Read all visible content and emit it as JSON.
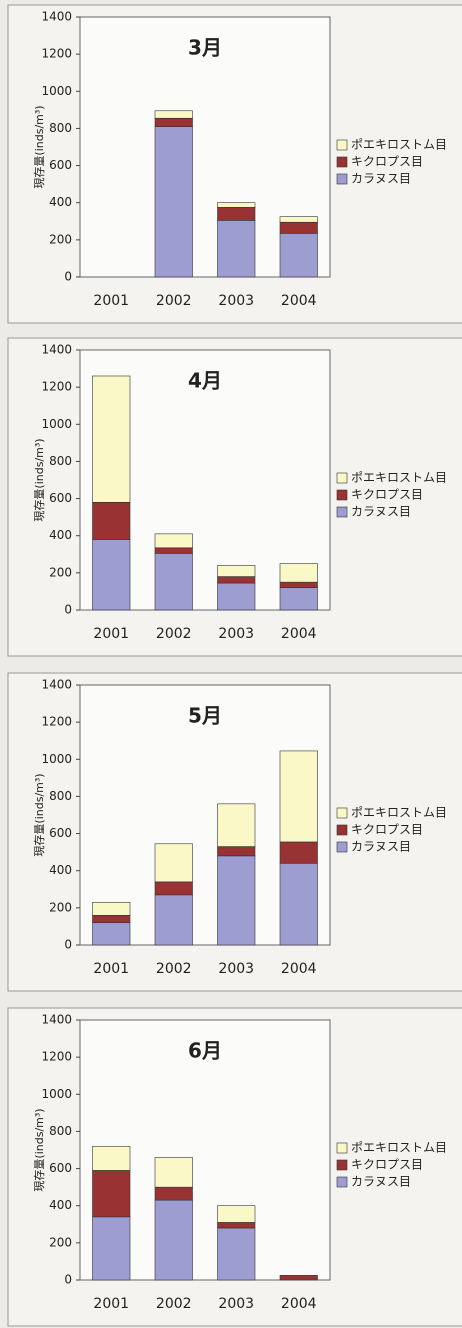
{
  "charts": [
    {
      "type": "bar",
      "stacked": true,
      "title": "3月",
      "y_label": "現存量(inds/m³)",
      "categories": [
        "2001",
        "2002",
        "2003",
        "2004"
      ],
      "series": [
        {
          "name": "カラヌス目",
          "color": "#9d9dd2",
          "values": [
            0,
            810,
            305,
            235
          ]
        },
        {
          "name": "キクロプス目",
          "color": "#993333",
          "values": [
            0,
            45,
            70,
            60
          ]
        },
        {
          "name": "ポエキロストム目",
          "color": "#fbf8c8",
          "values": [
            0,
            40,
            25,
            30
          ]
        }
      ],
      "ylim": [
        0,
        1400
      ],
      "yticks": [
        0,
        200,
        400,
        600,
        800,
        1000,
        1200,
        1400
      ]
    },
    {
      "type": "bar",
      "stacked": true,
      "title": "4月",
      "y_label": "現存量(inds/m³)",
      "categories": [
        "2001",
        "2002",
        "2003",
        "2004"
      ],
      "series": [
        {
          "name": "カラヌス目",
          "color": "#9d9dd2",
          "values": [
            380,
            305,
            145,
            120
          ]
        },
        {
          "name": "キクロプス目",
          "color": "#993333",
          "values": [
            200,
            30,
            35,
            30
          ]
        },
        {
          "name": "ポエキロストム目",
          "color": "#fbf8c8",
          "values": [
            680,
            75,
            60,
            100
          ]
        }
      ],
      "ylim": [
        0,
        1400
      ],
      "yticks": [
        0,
        200,
        400,
        600,
        800,
        1000,
        1200,
        1400
      ]
    },
    {
      "type": "bar",
      "stacked": true,
      "title": "5月",
      "y_label": "現存量(inds/m³)",
      "categories": [
        "2001",
        "2002",
        "2003",
        "2004"
      ],
      "series": [
        {
          "name": "カラヌス目",
          "color": "#9d9dd2",
          "values": [
            120,
            270,
            480,
            440
          ]
        },
        {
          "name": "キクロプス目",
          "color": "#993333",
          "values": [
            40,
            70,
            50,
            115
          ]
        },
        {
          "name": "ポエキロストム目",
          "color": "#fbf8c8",
          "values": [
            70,
            205,
            230,
            490
          ]
        }
      ],
      "ylim": [
        0,
        1400
      ],
      "yticks": [
        0,
        200,
        400,
        600,
        800,
        1000,
        1200,
        1400
      ]
    },
    {
      "type": "bar",
      "stacked": true,
      "title": "6月",
      "y_label": "現存量(inds/m³)",
      "categories": [
        "2001",
        "2002",
        "2003",
        "2004"
      ],
      "series": [
        {
          "name": "カラヌス目",
          "color": "#9d9dd2",
          "values": [
            340,
            430,
            280,
            0
          ]
        },
        {
          "name": "キクロプス目",
          "color": "#993333",
          "values": [
            250,
            70,
            30,
            25
          ]
        },
        {
          "name": "ポエキロストム目",
          "color": "#fbf8c8",
          "values": [
            130,
            160,
            90,
            0
          ]
        }
      ],
      "ylim": [
        0,
        1400
      ],
      "yticks": [
        0,
        200,
        400,
        600,
        800,
        1000,
        1200,
        1400
      ]
    }
  ]
}
